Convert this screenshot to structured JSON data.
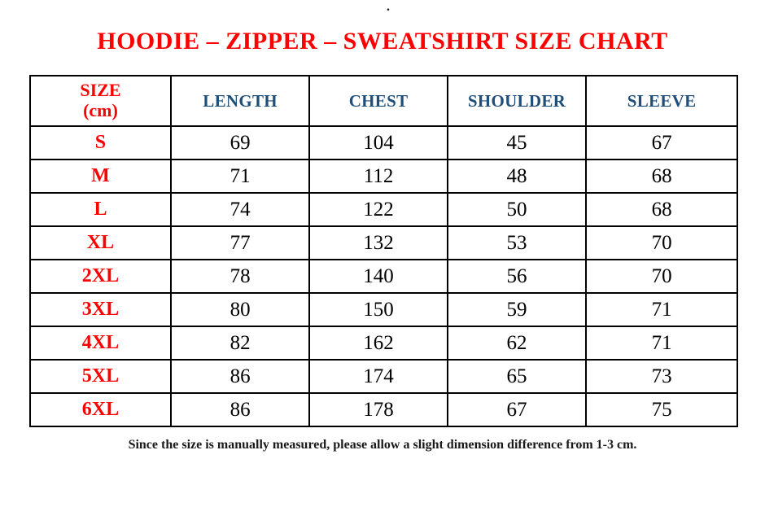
{
  "page": {
    "stray_mark": ".",
    "title": "HOODIE – ZIPPER – SWEATSHIRT SIZE CHART",
    "footer_note": "Since the size is manually measured, please allow a slight dimension difference from 1-3 cm.",
    "colors": {
      "title_red": "#fe0000",
      "size_label_red": "#fe0000",
      "header_blue": "#1f4e79",
      "value_black": "#000000",
      "border_black": "#000000",
      "background": "#ffffff"
    }
  },
  "table": {
    "header": {
      "size_line1": "SIZE",
      "size_line2": "(cm)",
      "columns": [
        "LENGTH",
        "CHEST",
        "SHOULDER",
        "SLEEVE"
      ]
    },
    "rows": [
      {
        "size": "S",
        "length": "69",
        "chest": "104",
        "shoulder": "45",
        "sleeve": "67"
      },
      {
        "size": "M",
        "length": "71",
        "chest": "112",
        "shoulder": "48",
        "sleeve": "68"
      },
      {
        "size": "L",
        "length": "74",
        "chest": "122",
        "shoulder": "50",
        "sleeve": "68"
      },
      {
        "size": "XL",
        "length": "77",
        "chest": "132",
        "shoulder": "53",
        "sleeve": "70"
      },
      {
        "size": "2XL",
        "length": "78",
        "chest": "140",
        "shoulder": "56",
        "sleeve": "70"
      },
      {
        "size": "3XL",
        "length": "80",
        "chest": "150",
        "shoulder": "59",
        "sleeve": "71"
      },
      {
        "size": "4XL",
        "length": "82",
        "chest": "162",
        "shoulder": "62",
        "sleeve": "71"
      },
      {
        "size": "5XL",
        "length": "86",
        "chest": "174",
        "shoulder": "65",
        "sleeve": "73"
      },
      {
        "size": "6XL",
        "length": "86",
        "chest": "178",
        "shoulder": "67",
        "sleeve": "75"
      }
    ]
  }
}
